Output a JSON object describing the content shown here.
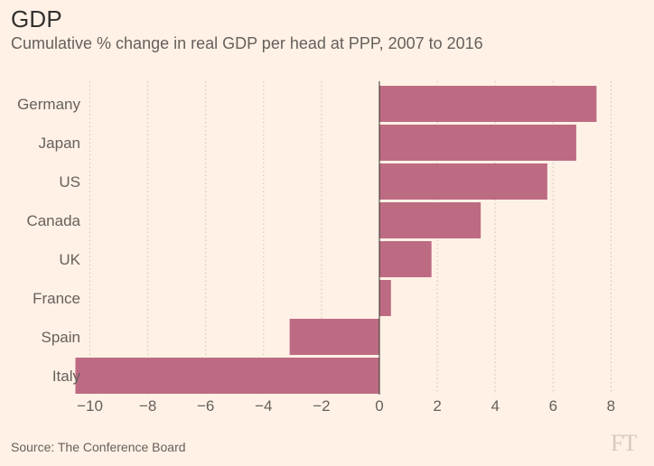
{
  "header": {
    "title": "GDP",
    "subtitle": "Cumulative % change in real GDP per head at PPP, 2007 to 2016"
  },
  "footer": {
    "source": "Source: The Conference Board",
    "logo": "FT"
  },
  "colors": {
    "background": "#fff1e5",
    "bar": "#bd6b83",
    "gridline": "#ccc1b7",
    "axis_text": "#66605c",
    "zero_line": "#33302e"
  },
  "chart_data": {
    "type": "bar",
    "orientation": "horizontal",
    "title": "GDP",
    "subtitle": "Cumulative % change in real GDP per head at PPP, 2007 to 2016",
    "xlabel": "",
    "ylabel": "",
    "categories": [
      "Germany",
      "Japan",
      "US",
      "Canada",
      "UK",
      "France",
      "Spain",
      "Italy"
    ],
    "values": [
      7.5,
      6.8,
      5.8,
      3.5,
      1.8,
      0.4,
      -3.1,
      -10.5
    ],
    "xlim": [
      -10.5,
      8.5
    ],
    "xticks": [
      -10,
      -8,
      -6,
      -4,
      -2,
      0,
      2,
      4,
      6,
      8
    ],
    "xtick_labels": [
      "−10",
      "−8",
      "−6",
      "−4",
      "−2",
      "0",
      "2",
      "4",
      "6",
      "8"
    ],
    "grid": "vertical dotted",
    "legend": "none"
  }
}
